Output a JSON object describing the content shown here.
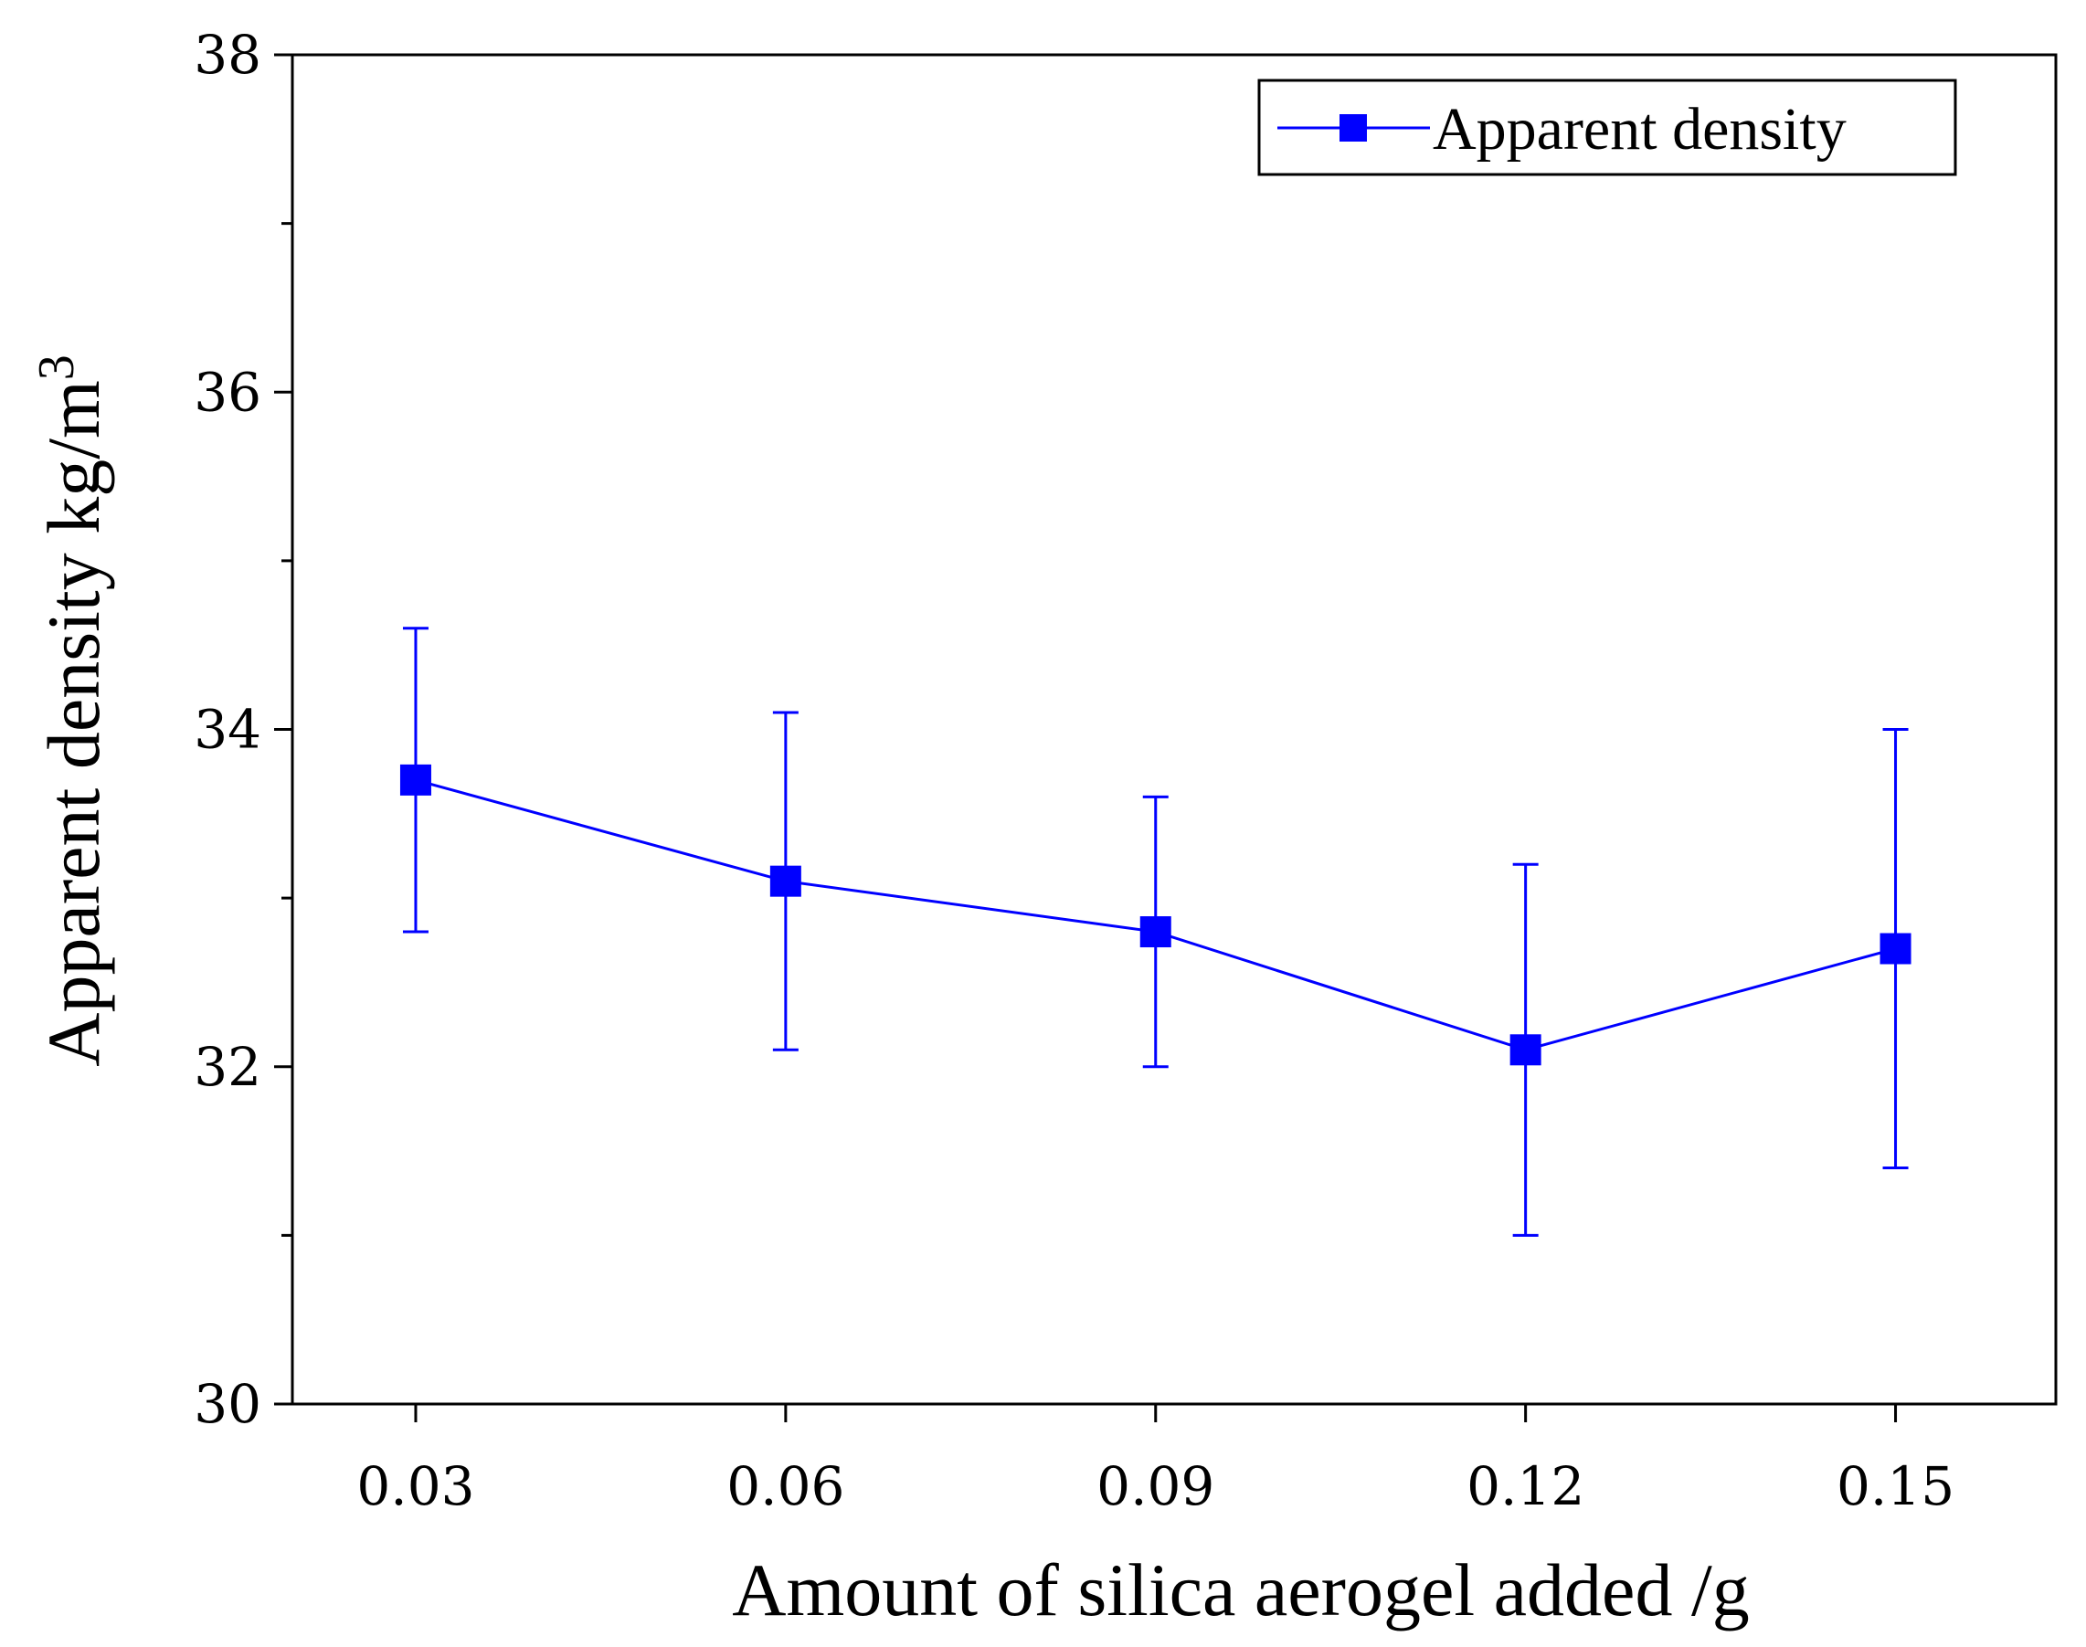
{
  "chart_data": {
    "type": "line",
    "title": "",
    "xlabel": "Amount of silica aerogel added /g",
    "ylabel": "Apparent density kg/m",
    "ylabel_superscript": "3",
    "x": [
      "0.03",
      "0.06",
      "0.09",
      "0.12",
      "0.15"
    ],
    "xlim": [
      0.02,
      0.163
    ],
    "ylim": [
      30,
      38
    ],
    "yticks": [
      "30",
      "32",
      "34",
      "36",
      "38"
    ],
    "yminor": [
      31,
      33,
      35,
      37
    ],
    "legend": {
      "position": "top-right",
      "entries": [
        "Apparent density"
      ]
    },
    "series": [
      {
        "name": "Apparent density",
        "color": "#0000ff",
        "marker": "square",
        "x": [
          0.03,
          0.06,
          0.09,
          0.12,
          0.15
        ],
        "values": [
          33.7,
          33.1,
          32.8,
          32.1,
          32.7
        ],
        "error": [
          0.9,
          1.0,
          0.8,
          1.1,
          1.3
        ]
      }
    ]
  }
}
